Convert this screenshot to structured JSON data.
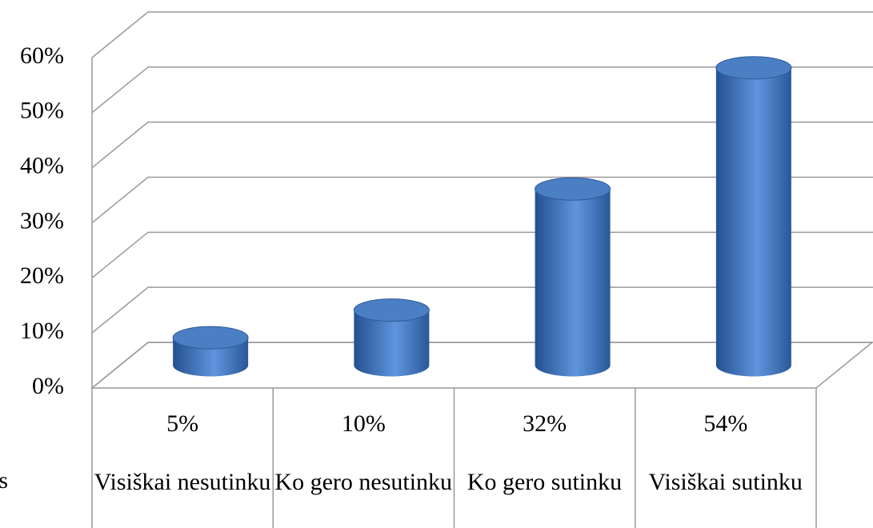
{
  "chart_data": {
    "type": "bar3d",
    "categories": [
      "Visiškai nesutinku",
      "Ko gero nesutinku",
      "Ko gero sutinku",
      "Visiškai sutinku"
    ],
    "series": [
      {
        "name": "s",
        "color": "#4a7fc4",
        "values": [
          5,
          10,
          32,
          54
        ],
        "value_labels": [
          "5%",
          "10%",
          "32%",
          "54%"
        ]
      }
    ],
    "ylim": [
      0,
      60
    ],
    "yticks": [
      {
        "value": 0,
        "label": "0%"
      },
      {
        "value": 10,
        "label": "10%"
      },
      {
        "value": 20,
        "label": "20%"
      },
      {
        "value": 30,
        "label": "30%"
      },
      {
        "value": 40,
        "label": "40%"
      },
      {
        "value": 50,
        "label": "50%"
      },
      {
        "value": 60,
        "label": "60%"
      }
    ],
    "grid": true,
    "data_table": true
  }
}
